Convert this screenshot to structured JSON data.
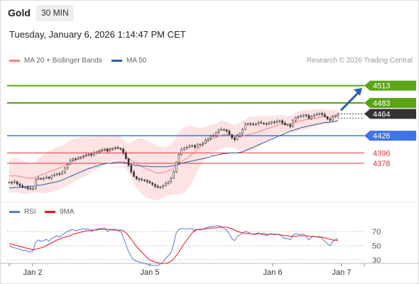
{
  "header": {
    "instrument": "Gold",
    "timeframe": "30 MIN"
  },
  "datetime": "Tuesday, January 6, 2026 1:14:47 PM CET",
  "credit": "Research © 2026 Trading Central",
  "colors": {
    "resistance": "#5aa514",
    "support": "#3d74e8",
    "support_lines": "#e2343a",
    "ma20": "#f58080",
    "ma50": "#2f5c9a",
    "bands": "#fde3e3",
    "rsi": "#5b79d8",
    "rsi_ma": "#e8151b",
    "arrow": "#2b60a6",
    "current": "#333333"
  },
  "chart_data": [
    {
      "type": "candlestick",
      "legend": [
        {
          "name": "MA 20 + Bollinger Bands",
          "color": "#f58080"
        },
        {
          "name": "MA 50",
          "color": "#2f5c9a"
        }
      ],
      "x_ticks": [
        "Jan 2",
        "Jan 5",
        "Jan 6",
        "Jan 7"
      ],
      "y_range": [
        4310,
        4520
      ],
      "current_price": {
        "value": 4464,
        "label": "4464"
      },
      "levels": [
        {
          "value": 4513,
          "label": "4513",
          "kind": "resistance"
        },
        {
          "value": 4483,
          "label": "4483",
          "kind": "resistance"
        },
        {
          "value": 4426,
          "label": "4426",
          "kind": "support"
        },
        {
          "value": 4396,
          "label": "4396",
          "kind": "support"
        },
        {
          "value": 4378,
          "label": "4378",
          "kind": "support"
        }
      ],
      "close": [
        4345,
        4344,
        4346,
        4342,
        4339,
        4336,
        4337,
        4334,
        4333,
        4335,
        4350,
        4352,
        4351,
        4352,
        4354,
        4352,
        4356,
        4358,
        4360,
        4359,
        4362,
        4370,
        4376,
        4383,
        4386,
        4385,
        4387,
        4389,
        4391,
        4392,
        4394,
        4392,
        4396,
        4398,
        4400,
        4401,
        4403,
        4399,
        4402,
        4404,
        4405,
        4404,
        4403,
        4396,
        4386,
        4374,
        4363,
        4355,
        4351,
        4350,
        4349,
        4348,
        4346,
        4344,
        4341,
        4338,
        4336,
        4337,
        4339,
        4343,
        4346,
        4352,
        4363,
        4380,
        4393,
        4402,
        4405,
        4406,
        4408,
        4409,
        4406,
        4410,
        4411,
        4413,
        4418,
        4421,
        4425,
        4426,
        4432,
        4436,
        4437,
        4436,
        4434,
        4428,
        4422,
        4419,
        4426,
        4430,
        4437,
        4446,
        4447,
        4446,
        4445,
        4447,
        4449,
        4448,
        4447,
        4446,
        4448,
        4450,
        4449,
        4451,
        4452,
        4448,
        4445,
        4445,
        4442,
        4452,
        4458,
        4459,
        4460,
        4462,
        4461,
        4456,
        4460,
        4462,
        4463,
        4465,
        4463,
        4459,
        4455,
        4453,
        4459,
        4461,
        4464
      ],
      "bollinger_upper": [
        4385,
        4386,
        4387,
        4386,
        4385,
        4383,
        4382,
        4380,
        4379,
        4378,
        4382,
        4386,
        4390,
        4394,
        4397,
        4400,
        4402,
        4404,
        4406,
        4407,
        4409,
        4412,
        4415,
        4418,
        4420,
        4421,
        4422,
        4423,
        4424,
        4424,
        4425,
        4424,
        4424,
        4424,
        4425,
        4425,
        4426,
        4425,
        4425,
        4426,
        4426,
        4427,
        4426,
        4420,
        4415,
        4412,
        4414,
        4417,
        4420,
        4422,
        4421,
        4420,
        4418,
        4416,
        4413,
        4410,
        4408,
        4407,
        4406,
        4407,
        4409,
        4412,
        4417,
        4424,
        4432,
        4438,
        4441,
        4442,
        4443,
        4443,
        4441,
        4440,
        4440,
        4440,
        4441,
        4443,
        4445,
        4446,
        4448,
        4450,
        4452,
        4452,
        4450,
        4448,
        4446,
        4445,
        4446,
        4448,
        4451,
        4455,
        4458,
        4459,
        4459,
        4459,
        4460,
        4460,
        4460,
        4460,
        4460,
        4461,
        4461,
        4462,
        4462,
        4462,
        4461,
        4461,
        4460,
        4463,
        4466,
        4468,
        4470,
        4471,
        4471,
        4470,
        4471,
        4472,
        4472,
        4473,
        4473,
        4472,
        4471,
        4470,
        4471,
        4471,
        4472
      ],
      "bollinger_lower": [
        4328,
        4327,
        4327,
        4327,
        4326,
        4325,
        4325,
        4325,
        4326,
        4327,
        4327,
        4327,
        4326,
        4325,
        4326,
        4327,
        4328,
        4329,
        4331,
        4333,
        4335,
        4337,
        4339,
        4342,
        4345,
        4348,
        4350,
        4352,
        4354,
        4357,
        4360,
        4363,
        4366,
        4368,
        4370,
        4373,
        4376,
        4378,
        4381,
        4383,
        4384,
        4383,
        4380,
        4375,
        4368,
        4361,
        4352,
        4343,
        4335,
        4329,
        4324,
        4320,
        4318,
        4316,
        4315,
        4314,
        4314,
        4316,
        4318,
        4320,
        4322,
        4323,
        4324,
        4324,
        4324,
        4325,
        4327,
        4331,
        4337,
        4345,
        4354,
        4364,
        4372,
        4380,
        4386,
        4391,
        4395,
        4398,
        4399,
        4401,
        4403,
        4405,
        4406,
        4406,
        4405,
        4404,
        4402,
        4400,
        4399,
        4398,
        4398,
        4399,
        4401,
        4403,
        4406,
        4409,
        4413,
        4416,
        4419,
        4421,
        4424,
        4427,
        4430,
        4431,
        4432,
        4433,
        4432,
        4432,
        4433,
        4434,
        4435,
        4436,
        4437,
        4438,
        4440,
        4441,
        4443,
        4444,
        4445,
        4446,
        4446,
        4447,
        4448,
        4449,
        4450
      ],
      "ma20": [
        4356,
        4356,
        4356,
        4356,
        4355,
        4354,
        4353,
        4352,
        4352,
        4352,
        4354,
        4356,
        4358,
        4359,
        4361,
        4363,
        4365,
        4366,
        4368,
        4370,
        4372,
        4374,
        4377,
        4380,
        4382,
        4384,
        4386,
        4387,
        4389,
        4390,
        4392,
        4393,
        4395,
        4396,
        4397,
        4399,
        4401,
        4401,
        4403,
        4404,
        4405,
        4405,
        4403,
        4397,
        4391,
        4386,
        4383,
        4380,
        4377,
        4375,
        4372,
        4370,
        4368,
        4366,
        4364,
        4362,
        4361,
        4361,
        4362,
        4363,
        4365,
        4367,
        4370,
        4374,
        4378,
        4381,
        4384,
        4386,
        4390,
        4394,
        4398,
        4402,
        4406,
        4410,
        4413,
        4417,
        4420,
        4422,
        4423,
        4425,
        4427,
        4428,
        4428,
        4427,
        4425,
        4424,
        4424,
        4424,
        4425,
        4427,
        4428,
        4429,
        4430,
        4431,
        4433,
        4434,
        4436,
        4438,
        4439,
        4441,
        4442,
        4444,
        4446,
        4446,
        4446,
        4447,
        4446,
        4447,
        4449,
        4451,
        4452,
        4453,
        4454,
        4454,
        4455,
        4456,
        4457,
        4458,
        4459,
        4459,
        4458,
        4458,
        4459,
        4460,
        4461
      ],
      "ma50": [
        4335,
        4335,
        4336,
        4336,
        4336,
        4337,
        4337,
        4337,
        4338,
        4338,
        4339,
        4340,
        4340,
        4341,
        4342,
        4343,
        4344,
        4345,
        4346,
        4347,
        4349,
        4351,
        4353,
        4355,
        4357,
        4359,
        4361,
        4363,
        4365,
        4367,
        4369,
        4370,
        4372,
        4373,
        4375,
        4376,
        4377,
        4378,
        4378,
        4379,
        4380,
        4380,
        4380,
        4380,
        4379,
        4378,
        4376,
        4375,
        4374,
        4374,
        4373,
        4373,
        4373,
        4372,
        4372,
        4372,
        4372,
        4372,
        4372,
        4372,
        4372,
        4373,
        4374,
        4375,
        4376,
        4378,
        4379,
        4380,
        4381,
        4382,
        4383,
        4384,
        4385,
        4386,
        4387,
        4388,
        4390,
        4391,
        4392,
        4393,
        4394,
        4395,
        4395,
        4396,
        4396,
        4396,
        4396,
        4397,
        4398,
        4400,
        4402,
        4404,
        4406,
        4408,
        4410,
        4412,
        4414,
        4416,
        4418,
        4420,
        4422,
        4424,
        4426,
        4428,
        4430,
        4432,
        4434,
        4435,
        4437,
        4438,
        4440,
        4441,
        4442,
        4443,
        4444,
        4445,
        4446,
        4447,
        4448,
        4449,
        4449,
        4450,
        4450,
        4451,
        4452
      ]
    },
    {
      "type": "line",
      "legend": [
        {
          "name": "RSI",
          "color": "#5b79d8"
        },
        {
          "name": "9MA",
          "color": "#e8151b"
        }
      ],
      "y_ticks": [
        70,
        50,
        30
      ],
      "y_range": [
        20,
        80
      ],
      "rsi": [
        50,
        48,
        47,
        46,
        45,
        43,
        44,
        42,
        41,
        43,
        55,
        58,
        56,
        57,
        59,
        56,
        60,
        62,
        64,
        62,
        65,
        68,
        70,
        72,
        73,
        71,
        72,
        73,
        74,
        73,
        74,
        70,
        72,
        73,
        74,
        74,
        75,
        70,
        72,
        73,
        73,
        71,
        70,
        62,
        52,
        42,
        34,
        30,
        28,
        27,
        26,
        25,
        24,
        23,
        22,
        22,
        22,
        24,
        27,
        32,
        36,
        40,
        52,
        68,
        73,
        74,
        74,
        73,
        74,
        74,
        70,
        73,
        72,
        73,
        75,
        76,
        77,
        77,
        78,
        78,
        77,
        74,
        72,
        66,
        60,
        57,
        63,
        65,
        68,
        70,
        69,
        67,
        66,
        67,
        68,
        66,
        65,
        64,
        66,
        67,
        65,
        66,
        66,
        62,
        60,
        60,
        58,
        65,
        67,
        66,
        66,
        66,
        63,
        58,
        62,
        63,
        62,
        63,
        60,
        56,
        53,
        50,
        56,
        58,
        60
      ],
      "rsi_ma": [
        53,
        52,
        51,
        50,
        49,
        48,
        47,
        46,
        45,
        44,
        45,
        46,
        47,
        48,
        50,
        52,
        54,
        56,
        58,
        59,
        61,
        62,
        63,
        64,
        66,
        67,
        68,
        69,
        70,
        71,
        71,
        72,
        72,
        72,
        73,
        73,
        73,
        73,
        73,
        72,
        72,
        72,
        72,
        71,
        68,
        64,
        59,
        54,
        49,
        45,
        41,
        37,
        33,
        30,
        28,
        27,
        26,
        25,
        25,
        25,
        26,
        28,
        31,
        36,
        41,
        47,
        53,
        58,
        63,
        68,
        72,
        73,
        73,
        73,
        74,
        74,
        75,
        75,
        75,
        76,
        76,
        76,
        76,
        75,
        74,
        72,
        70,
        69,
        68,
        67,
        67,
        67,
        66,
        66,
        67,
        67,
        67,
        66,
        66,
        66,
        66,
        66,
        65,
        65,
        64,
        64,
        63,
        63,
        63,
        64,
        64,
        64,
        64,
        63,
        63,
        63,
        62,
        62,
        62,
        61,
        60,
        59,
        58,
        58,
        57
      ]
    }
  ]
}
